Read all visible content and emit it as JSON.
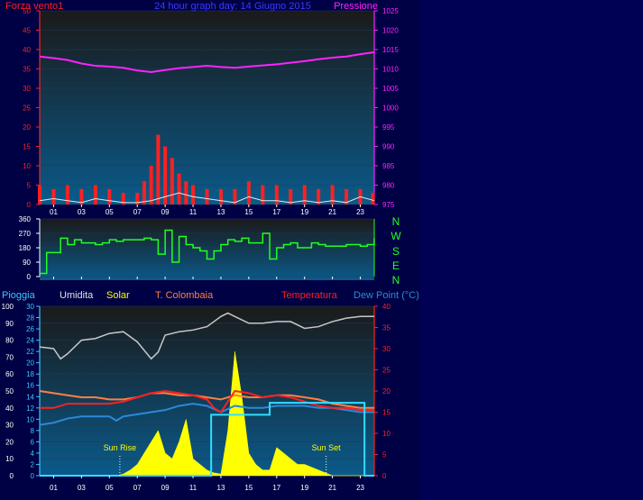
{
  "header": {
    "left_label": "Forza vento1",
    "title": "24 hour graph day: 14 Giugno 2015",
    "right_label": "Pressione"
  },
  "colors": {
    "background": "#000044",
    "plot_top": "#1a1a1a",
    "plot_bottom": "#0a5a8a",
    "wind": "#ff2020",
    "gust_white": "#e8e8e8",
    "pressure": "#ff22ff",
    "direction": "#22ff22",
    "rain_axis": "#39c6ff",
    "humidity": "#c8c8c8",
    "solar": "#ffff00",
    "temperature": "#ff2020",
    "colombaia": "#ff8040",
    "dewpoint": "#2a8ad8",
    "rain_line": "#33ddff",
    "compass": "#22ff22"
  },
  "x_ticks": [
    "01",
    "03",
    "05",
    "07",
    "09",
    "11",
    "13",
    "15",
    "17",
    "19",
    "21",
    "23"
  ],
  "compass_letters": [
    "N",
    "W",
    "S",
    "E",
    "N"
  ],
  "bottom_header": {
    "rain": "Pioggia",
    "humidity": "Umidita",
    "solar": "Solar",
    "colombaia": "T. Colombaia",
    "temperature": "Temperatura",
    "dewpoint": "Dew Point (°C)"
  },
  "annotations": {
    "sunrise": "Sun Rise",
    "sunset": "Sun Set"
  },
  "chart_data": [
    {
      "type": "line",
      "title": "24 hour graph day: 14 Giugno 2015",
      "x_unit": "hour",
      "left_axis": {
        "label": "Forza vento1",
        "ylim": [
          0,
          50
        ],
        "ticks": [
          0,
          5,
          10,
          15,
          20,
          25,
          30,
          35,
          40,
          45,
          50
        ]
      },
      "right_axis": {
        "label": "Pressione",
        "ylim": [
          975,
          1025
        ],
        "ticks": [
          975,
          980,
          985,
          990,
          995,
          1000,
          1005,
          1010,
          1015,
          1020,
          1025
        ]
      },
      "series": [
        {
          "name": "Forza vento1",
          "axis": "left",
          "color": "#ff2020",
          "style": "bars",
          "x": [
            0,
            1,
            2,
            3,
            4,
            5,
            6,
            7,
            7.5,
            8,
            8.5,
            9,
            9.5,
            10,
            10.5,
            11,
            12,
            13,
            14,
            15,
            16,
            17,
            18,
            19,
            20,
            21,
            22,
            23,
            23.9
          ],
          "y": [
            5,
            4,
            5,
            4,
            5,
            4,
            3,
            3,
            6,
            10,
            18,
            15,
            12,
            8,
            6,
            5,
            4,
            4,
            4,
            6,
            5,
            5,
            4,
            5,
            4,
            5,
            4,
            4,
            3
          ]
        },
        {
          "name": "Pressione",
          "axis": "right",
          "color": "#ff22ff",
          "x": [
            0,
            1,
            2,
            3,
            4,
            5,
            6,
            7,
            8,
            9,
            10,
            11,
            12,
            13,
            14,
            15,
            16,
            17,
            18,
            19,
            20,
            21,
            22,
            23,
            24
          ],
          "y": [
            1013.2,
            1012.8,
            1012.3,
            1011.4,
            1010.8,
            1010.6,
            1010.3,
            1009.6,
            1009.2,
            1009.7,
            1010.2,
            1010.5,
            1010.8,
            1010.5,
            1010.3,
            1010.6,
            1010.9,
            1011.2,
            1011.6,
            1012.0,
            1012.5,
            1012.9,
            1013.2,
            1013.8,
            1014.3
          ]
        },
        {
          "color": "#e8e8e8",
          "axis": "left",
          "x": [
            0,
            1,
            2,
            3,
            4,
            5,
            6,
            7,
            8,
            9,
            10,
            11,
            12,
            13,
            14,
            15,
            16,
            17,
            18,
            19,
            20,
            21,
            22,
            23,
            24
          ],
          "y": [
            1,
            1.5,
            1,
            0.5,
            1.5,
            1,
            0.5,
            0.5,
            1,
            2,
            3,
            2,
            1.5,
            1,
            0.5,
            2,
            1,
            1,
            0.5,
            1,
            0.5,
            1,
            0.5,
            2,
            1
          ]
        }
      ]
    },
    {
      "type": "line",
      "x_unit": "hour",
      "y_axis": {
        "ylim": [
          0,
          360
        ],
        "ticks": [
          0,
          90,
          180,
          270,
          360
        ]
      },
      "series": [
        {
          "color": "#22ff22",
          "x": [
            0,
            0.5,
            1,
            1.5,
            2,
            2.5,
            3,
            3.5,
            4,
            4.5,
            5,
            5.5,
            6,
            6.5,
            7,
            7.5,
            8,
            8.5,
            9,
            9.5,
            10,
            10.5,
            11,
            11.5,
            12,
            12.5,
            13,
            13.5,
            14,
            14.5,
            15,
            15.5,
            16,
            16.5,
            17,
            17.5,
            18,
            18.5,
            19,
            19.5,
            20,
            20.5,
            21,
            21.5,
            22,
            22.5,
            23,
            23.5,
            24
          ],
          "y": [
            20,
            150,
            150,
            240,
            200,
            230,
            210,
            210,
            200,
            210,
            230,
            220,
            230,
            230,
            230,
            240,
            230,
            140,
            290,
            90,
            250,
            200,
            180,
            160,
            110,
            160,
            200,
            230,
            220,
            240,
            210,
            210,
            270,
            110,
            180,
            200,
            210,
            180,
            180,
            210,
            200,
            190,
            190,
            190,
            200,
            200,
            190,
            200,
            240
          ]
        }
      ]
    },
    {
      "type": "line",
      "x_unit": "hour",
      "axes": {
        "rain": {
          "label": "Pioggia",
          "ylim": [
            0,
            100
          ],
          "ticks": [
            0,
            10,
            20,
            30,
            40,
            50,
            60,
            70,
            80,
            90,
            100
          ]
        },
        "solar": {
          "label": "Solar",
          "ylim": [
            0,
            30
          ],
          "ticks": [
            0,
            2,
            4,
            6,
            8,
            10,
            12,
            14,
            16,
            18,
            20,
            22,
            24,
            26,
            28,
            30
          ]
        },
        "temperature": {
          "label": "Dew Point (°C)",
          "ylim": [
            0,
            40
          ],
          "ticks": [
            0,
            5,
            10,
            15,
            20,
            25,
            30,
            35,
            40
          ]
        }
      },
      "series": [
        {
          "name": "Umidita",
          "axis": "rain",
          "color": "#c8c8c8",
          "x": [
            0,
            1,
            1.5,
            2,
            3,
            4,
            5,
            6,
            7,
            7.5,
            8,
            8.5,
            9,
            10,
            11,
            12,
            12.5,
            13,
            13.5,
            14,
            15,
            16,
            17,
            18,
            19,
            20,
            21,
            22,
            23,
            24
          ],
          "y": [
            76,
            75,
            69,
            72,
            80,
            81,
            84,
            85,
            79,
            74,
            69,
            73,
            83,
            85,
            86,
            88,
            91,
            94,
            96,
            94,
            90,
            90,
            91,
            91,
            87,
            88,
            91,
            93,
            94,
            94
          ]
        },
        {
          "name": "Solar",
          "axis": "solar",
          "color": "#ffff00",
          "style": "area",
          "x": [
            0,
            5.5,
            6,
            6.5,
            7,
            7.5,
            8,
            8.5,
            9,
            9.5,
            10,
            10.5,
            11,
            11.5,
            12,
            12.5,
            13,
            13.5,
            14,
            14.5,
            15,
            15.5,
            16,
            16.5,
            17,
            17.5,
            18,
            18.5,
            19,
            19.5,
            20,
            20.5,
            21,
            24
          ],
          "y": [
            0,
            0,
            0.3,
            1,
            2,
            4,
            6,
            8,
            4,
            3,
            6,
            10,
            3,
            2,
            1,
            0.5,
            0.3,
            8,
            22,
            14,
            4,
            2,
            1,
            1,
            5,
            4,
            3,
            2,
            2,
            1.5,
            1,
            0.5,
            0,
            0
          ]
        },
        {
          "name": "Temperatura",
          "axis": "temperature",
          "color": "#ff2020",
          "x": [
            0,
            1,
            2,
            3,
            4,
            5,
            6,
            7,
            8,
            9,
            10,
            11,
            12,
            12.5,
            13,
            13.5,
            14,
            15,
            16,
            17,
            18,
            19,
            20,
            21,
            22,
            23,
            24
          ],
          "y": [
            16,
            16,
            17,
            17,
            17,
            17,
            17.5,
            18.5,
            19.5,
            20,
            19.5,
            19,
            18,
            16,
            15,
            17.5,
            20,
            19.5,
            18.5,
            19,
            18.5,
            17.5,
            16.5,
            16,
            16,
            15.5,
            15.5
          ]
        },
        {
          "name": "T. Colombaia",
          "axis": "temperature",
          "color": "#ff8040",
          "x": [
            0,
            1,
            2,
            3,
            4,
            5,
            6,
            7,
            8,
            9,
            10,
            11,
            12,
            13,
            14,
            15,
            16,
            17,
            18,
            19,
            20,
            21,
            22,
            23,
            24
          ],
          "y": [
            20,
            19.5,
            19,
            18.5,
            18.5,
            18,
            18,
            18.5,
            19.5,
            19.5,
            19,
            19,
            18.5,
            18,
            19,
            18.5,
            18.5,
            19,
            19,
            18.5,
            18,
            17,
            16.5,
            16,
            16
          ]
        },
        {
          "name": "Dew Point (°C)",
          "axis": "temperature",
          "color": "#2a8ad8",
          "x": [
            0,
            1,
            2,
            3,
            4,
            5,
            5.5,
            6,
            7,
            8,
            9,
            10,
            11,
            12,
            13,
            14,
            15,
            16,
            17,
            18,
            19,
            20,
            21,
            22,
            23,
            24
          ],
          "y": [
            12,
            12.5,
            13.5,
            14,
            14,
            14,
            13,
            14,
            14.5,
            15,
            15.5,
            16.5,
            17,
            16.5,
            15,
            16.5,
            16,
            16,
            16.5,
            16.5,
            16.5,
            16,
            16,
            15.5,
            15,
            15
          ]
        },
        {
          "name": "Pioggia",
          "axis": "rain",
          "color": "#33ddff",
          "style": "step",
          "x": [
            0,
            12.3,
            12.3,
            16.5,
            16.5,
            23.3,
            23.3,
            24
          ],
          "y": [
            0,
            0,
            36,
            36,
            43,
            43,
            0,
            0
          ]
        }
      ],
      "markers": [
        {
          "label": "Sun Rise",
          "x": 5.75
        },
        {
          "label": "Sun Set",
          "x": 20.55
        }
      ]
    }
  ]
}
